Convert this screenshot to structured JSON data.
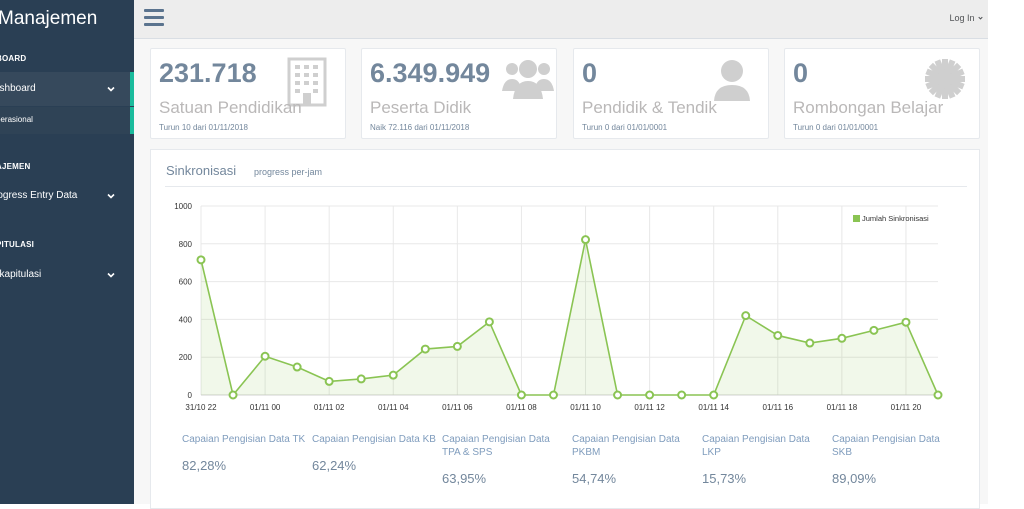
{
  "sidebar": {
    "brand": "Manajemen",
    "sections": [
      "BOARD",
      "AJEMEN",
      "PITULASI"
    ],
    "items": [
      {
        "label": "ashboard"
      },
      {
        "label": "rogress Entry Data"
      },
      {
        "label": "ekapitulasi"
      }
    ],
    "sub_item": "perasional"
  },
  "topnav": {
    "login_label": "Log In"
  },
  "tiles": [
    {
      "count": "231.718",
      "name": "Satuan Pendidikan",
      "sub": "Turun 10 dari 01/11/2018",
      "icon": "building-icon"
    },
    {
      "count": "6.349.949",
      "name": "Peserta Didik",
      "sub": "Naik 72.116 dari 01/11/2018",
      "icon": "users-icon"
    },
    {
      "count": "0",
      "name": "Pendidik & Tendik",
      "sub": "Turun 0 dari 01/01/0001",
      "icon": "user-icon"
    },
    {
      "count": "0",
      "name": "Rombongan Belajar",
      "sub": "Turun 0 dari 01/01/0001",
      "icon": "gear-icon"
    }
  ],
  "panel": {
    "title": "Sinkronisasi",
    "subtitle": "progress per-jam"
  },
  "chart_data": {
    "type": "area",
    "title": "Sinkronisasi",
    "series": [
      {
        "name": "Jumlah Sinkronisasi",
        "color": "#8ac453",
        "values": [
          715,
          0,
          205,
          148,
          72,
          85,
          105,
          243,
          257,
          387,
          0,
          0,
          822,
          0,
          0,
          0,
          0,
          420,
          315,
          275,
          300,
          342,
          385,
          0
        ]
      }
    ],
    "categories": [
      "31/10 22",
      "",
      "01/11 00",
      "",
      "01/11 02",
      "",
      "01/11 04",
      "",
      "01/11 06",
      "",
      "01/11 08",
      "",
      "01/11 10",
      "",
      "01/11 12",
      "",
      "01/11 14",
      "",
      "01/11 16",
      "",
      "01/11 18",
      "",
      "01/11 20",
      ""
    ],
    "ylim": [
      0,
      1000
    ],
    "yticks": [
      0,
      200,
      400,
      600,
      800,
      1000
    ],
    "legend": "top-right",
    "grid": true
  },
  "stats": [
    {
      "label": "Capaian Pengisian Data TK",
      "value": "82,28%"
    },
    {
      "label": "Capaian Pengisian Data KB",
      "value": "62,24%"
    },
    {
      "label": "Capaian Pengisian Data TPA & SPS",
      "value": "63,95%"
    },
    {
      "label": "Capaian Pengisian Data PKBM",
      "value": "54,74%"
    },
    {
      "label": "Capaian Pengisian Data LKP",
      "value": "15,73%"
    },
    {
      "label": "Capaian Pengisian Data SKB",
      "value": "89,09%"
    }
  ]
}
